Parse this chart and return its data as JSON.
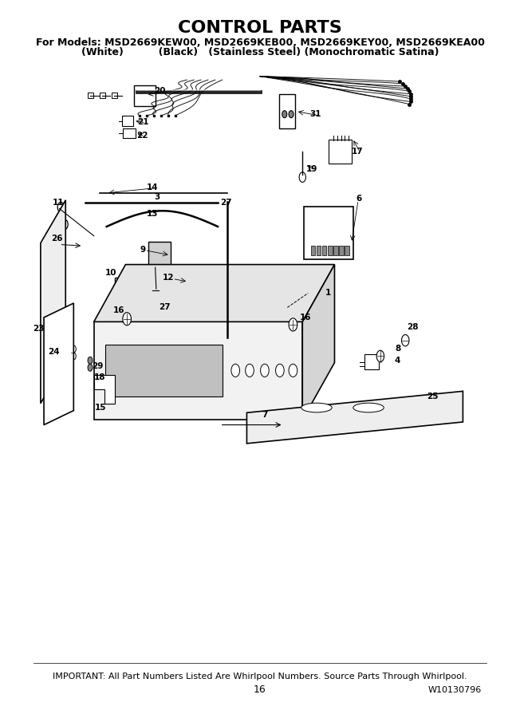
{
  "title": "CONTROL PARTS",
  "subtitle1": "For Models: MSD2669KEW00, MSD2669KEB00, MSD2669KEY00, MSD2669KEA00",
  "subtitle2": "(White)          (Black)   (Stainless Steel) (Monochromatic Satina)",
  "footer1": "IMPORTANT: All Part Numbers Listed Are Whirlpool Numbers. Source Parts Through Whirlpool.",
  "footer2": "16",
  "footer3": "W10130796",
  "bg_color": "#ffffff",
  "text_color": "#000000",
  "title_fontsize": 16,
  "subtitle_fontsize": 9,
  "footer_fontsize": 8,
  "fig_width": 6.52,
  "fig_height": 9.0,
  "dpi": 100
}
